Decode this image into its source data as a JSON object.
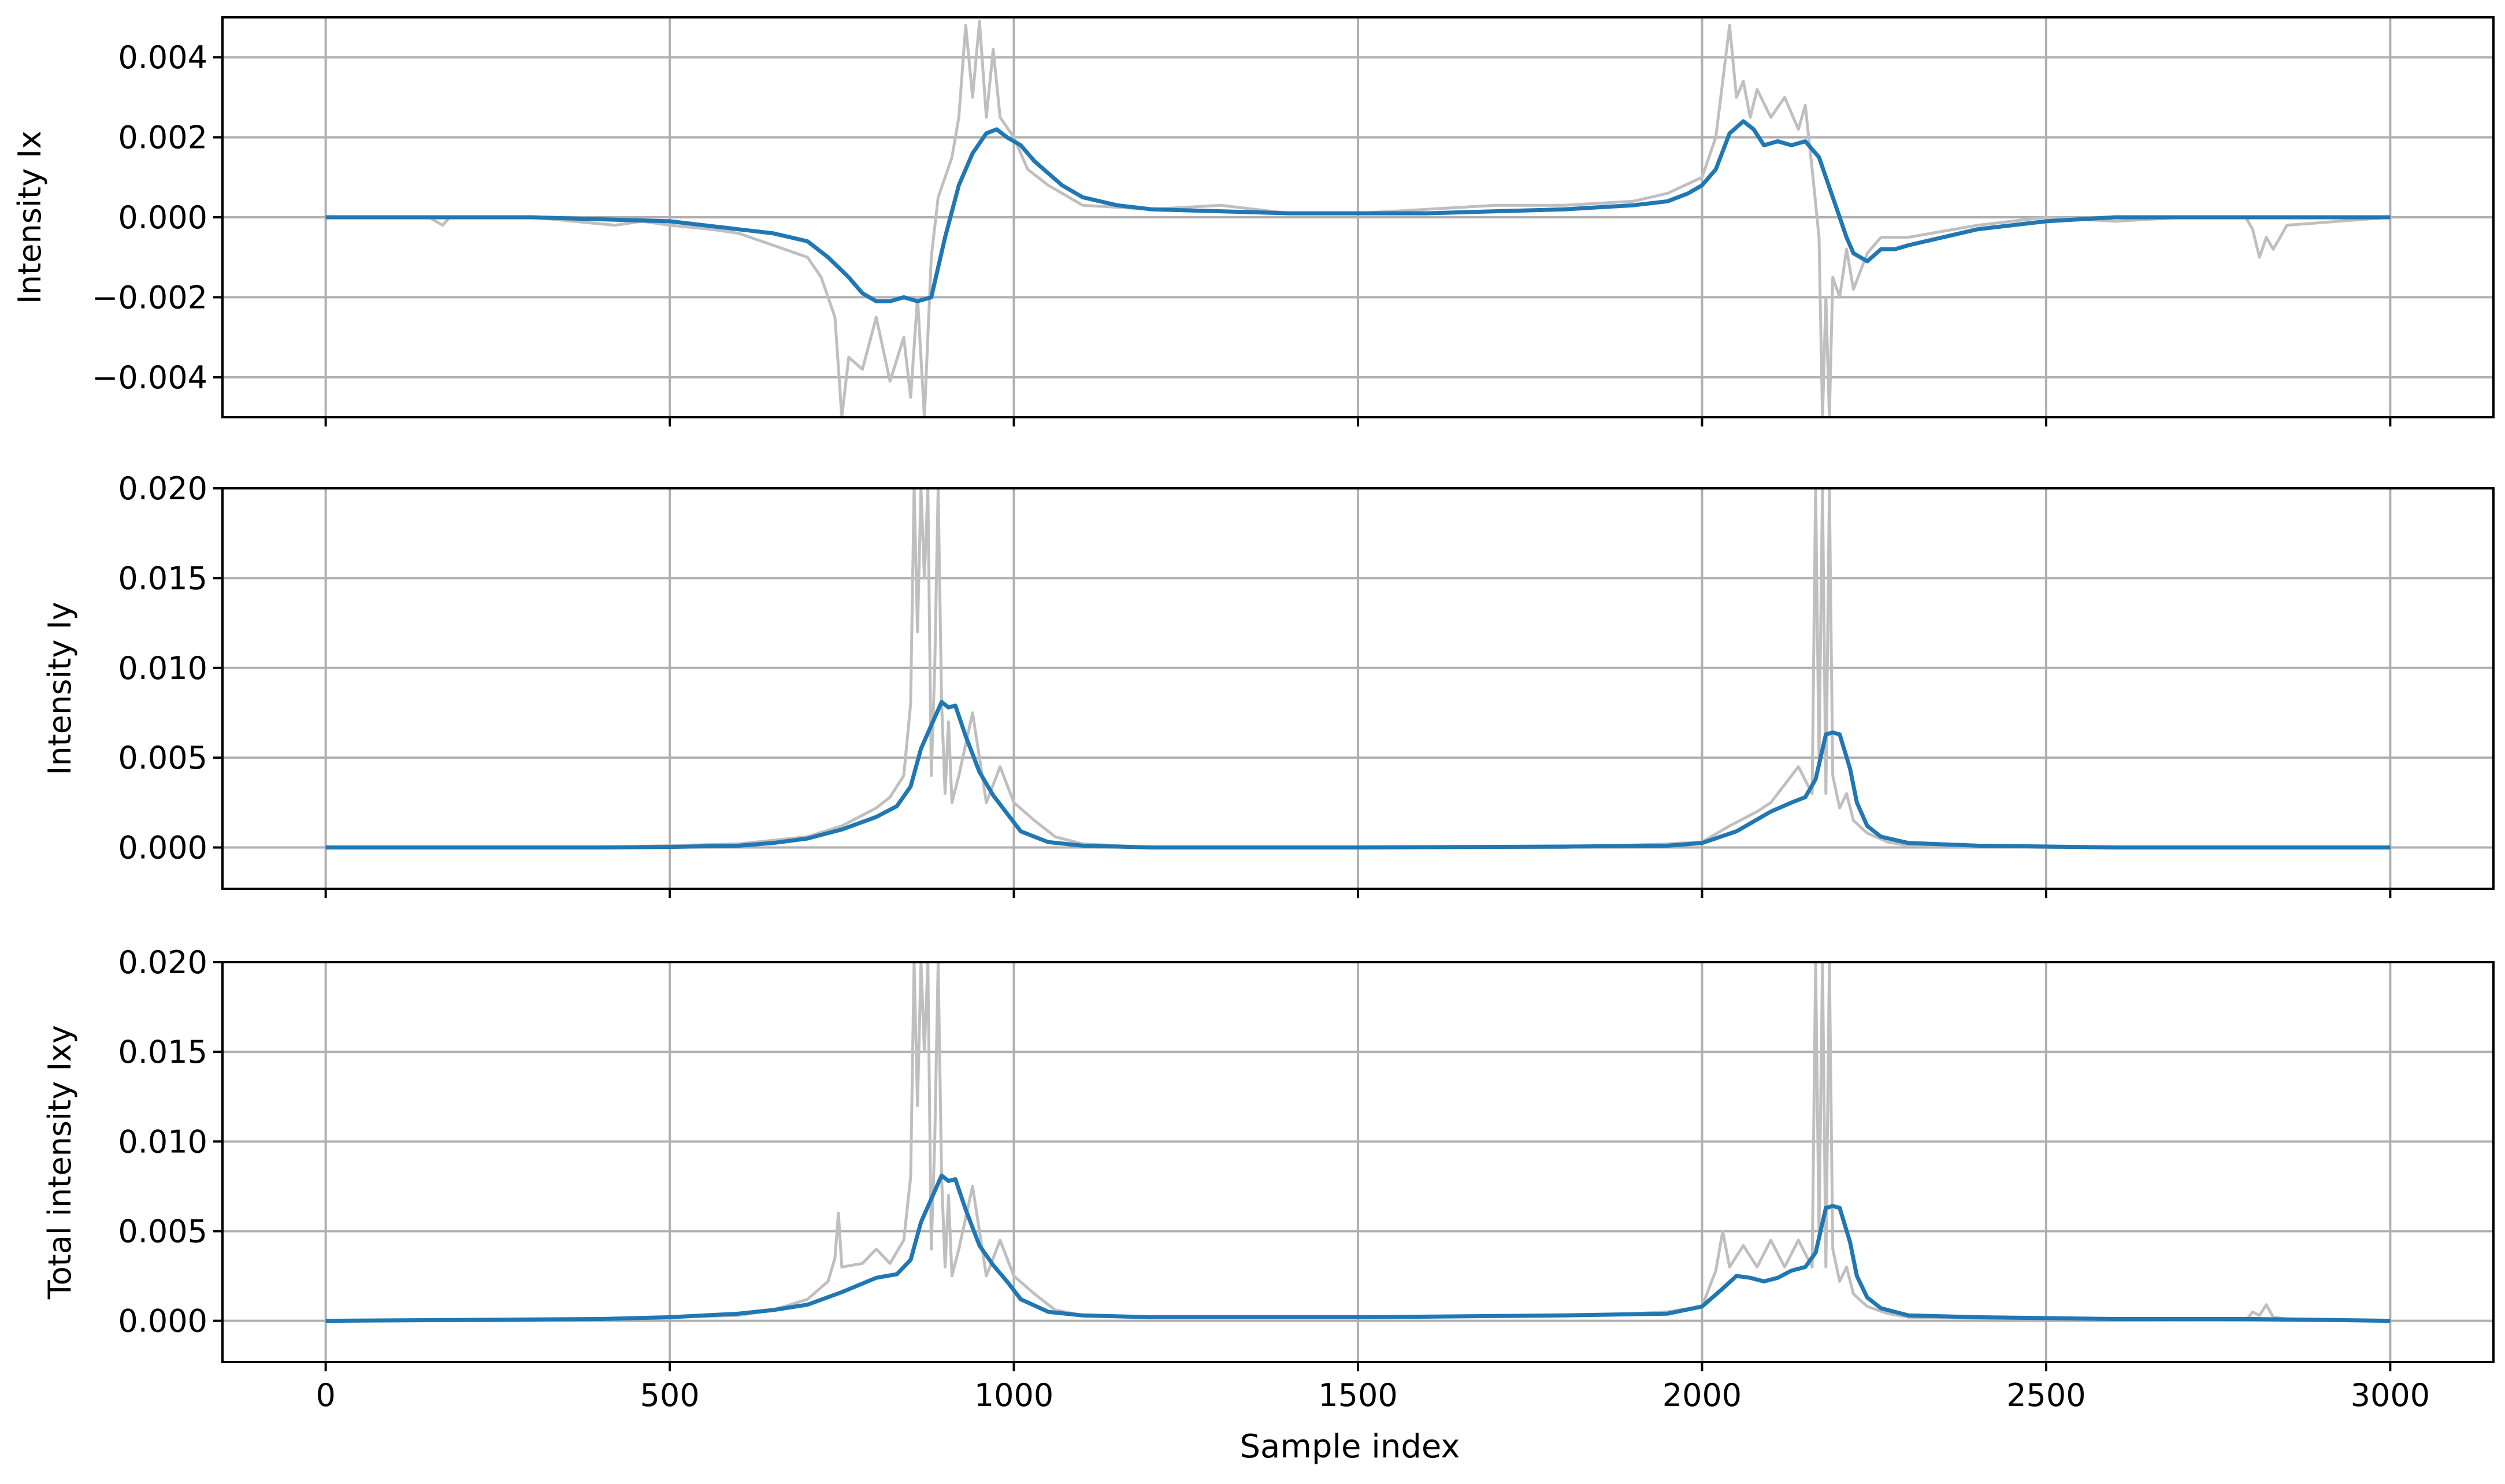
{
  "figure": {
    "xlabel": "Sample index"
  },
  "chart_data": [
    {
      "type": "line",
      "ylabel": "Intensity Ix",
      "xlim": [
        -150,
        3150
      ],
      "ylim": [
        -0.005,
        0.005
      ],
      "xticks": [
        0,
        500,
        1000,
        1500,
        2000,
        2500,
        3000
      ],
      "xtick_labels": [
        "0",
        "500",
        "1000",
        "1500",
        "2000",
        "2500",
        "3000"
      ],
      "yticks": [
        -0.004,
        -0.002,
        0.0,
        0.002,
        0.004
      ],
      "ytick_labels": [
        "−0.004",
        "−0.002",
        "0.000",
        "0.002",
        "0.004"
      ],
      "show_xtick_labels": false,
      "grid": true,
      "raw_color": "#bfbfbf",
      "smooth_color": "#1f77b4",
      "raw": {
        "x": [
          0,
          150,
          170,
          180,
          300,
          420,
          460,
          500,
          560,
          600,
          650,
          700,
          720,
          740,
          750,
          760,
          780,
          800,
          820,
          840,
          850,
          860,
          870,
          880,
          890,
          900,
          910,
          920,
          930,
          940,
          950,
          960,
          970,
          980,
          1000,
          1020,
          1050,
          1100,
          1200,
          1300,
          1400,
          1500,
          1600,
          1700,
          1800,
          1900,
          1950,
          2000,
          2020,
          2040,
          2050,
          2060,
          2070,
          2080,
          2100,
          2120,
          2140,
          2150,
          2160,
          2170,
          2175,
          2180,
          2185,
          2190,
          2200,
          2210,
          2220,
          2240,
          2260,
          2300,
          2400,
          2500,
          2600,
          2700,
          2790,
          2800,
          2810,
          2820,
          2830,
          2850,
          3000
        ],
        "y": [
          0.0,
          0.0,
          -0.0002,
          0.0,
          0.0,
          -0.0002,
          -0.0001,
          -0.0002,
          -0.0003,
          -0.0004,
          -0.0007,
          -0.001,
          -0.0015,
          -0.0025,
          -0.005,
          -0.0035,
          -0.0038,
          -0.0025,
          -0.0041,
          -0.003,
          -0.0045,
          -0.002,
          -0.005,
          -0.001,
          0.0005,
          0.001,
          0.0015,
          0.0025,
          0.0048,
          0.003,
          0.0049,
          0.0025,
          0.0042,
          0.0025,
          0.002,
          0.0012,
          0.0008,
          0.0003,
          0.0002,
          0.0003,
          0.0001,
          0.0001,
          0.0002,
          0.0003,
          0.0003,
          0.0004,
          0.0006,
          0.001,
          0.002,
          0.0048,
          0.003,
          0.0034,
          0.0025,
          0.0032,
          0.0025,
          0.003,
          0.0022,
          0.0028,
          0.0012,
          -0.0005,
          -0.005,
          -0.002,
          -0.005,
          -0.0015,
          -0.002,
          -0.0008,
          -0.0018,
          -0.0009,
          -0.0005,
          -0.0005,
          -0.0002,
          0.0,
          -0.0001,
          0.0,
          0.0,
          -0.0003,
          -0.001,
          -0.0005,
          -0.0008,
          -0.0002,
          0.0
        ]
      },
      "smooth": {
        "x": [
          0,
          100,
          200,
          300,
          400,
          500,
          550,
          600,
          650,
          700,
          730,
          760,
          780,
          800,
          820,
          840,
          860,
          880,
          900,
          920,
          940,
          960,
          975,
          990,
          1010,
          1030,
          1050,
          1070,
          1100,
          1150,
          1200,
          1300,
          1400,
          1500,
          1600,
          1700,
          1800,
          1900,
          1950,
          1980,
          2000,
          2020,
          2040,
          2060,
          2075,
          2090,
          2110,
          2130,
          2150,
          2170,
          2190,
          2210,
          2220,
          2240,
          2260,
          2280,
          2300,
          2400,
          2500,
          2600,
          2700,
          2800,
          2830,
          2900,
          3000
        ],
        "y": [
          0.0,
          0.0,
          0.0,
          0.0,
          -5e-05,
          -0.0001,
          -0.0002,
          -0.0003,
          -0.0004,
          -0.0006,
          -0.001,
          -0.0015,
          -0.0019,
          -0.0021,
          -0.0021,
          -0.002,
          -0.0021,
          -0.002,
          -0.0005,
          0.0008,
          0.0016,
          0.0021,
          0.0022,
          0.002,
          0.0018,
          0.0014,
          0.0011,
          0.0008,
          0.0005,
          0.0003,
          0.0002,
          0.00015,
          0.0001,
          0.0001,
          0.0001,
          0.00015,
          0.0002,
          0.0003,
          0.0004,
          0.0006,
          0.0008,
          0.0012,
          0.0021,
          0.0024,
          0.0022,
          0.0018,
          0.0019,
          0.0018,
          0.0019,
          0.0015,
          0.0005,
          -0.0005,
          -0.0009,
          -0.0011,
          -0.0008,
          -0.0008,
          -0.0007,
          -0.0003,
          -0.0001,
          0.0,
          0.0,
          0.0,
          0.0,
          0.0,
          0.0
        ]
      }
    },
    {
      "type": "line",
      "ylabel": "Intensity Iy",
      "xlim": [
        -150,
        3150
      ],
      "ylim": [
        -0.0023,
        0.02
      ],
      "xticks": [
        0,
        500,
        1000,
        1500,
        2000,
        2500,
        3000
      ],
      "xtick_labels": [
        "0",
        "500",
        "1000",
        "1500",
        "2000",
        "2500",
        "3000"
      ],
      "yticks": [
        0.0,
        0.005,
        0.01,
        0.015,
        0.02
      ],
      "ytick_labels": [
        "0.000",
        "0.005",
        "0.010",
        "0.015",
        "0.020"
      ],
      "show_xtick_labels": false,
      "grid": true,
      "raw_color": "#bfbfbf",
      "smooth_color": "#1f77b4",
      "raw": {
        "x": [
          0,
          400,
          500,
          600,
          650,
          700,
          750,
          780,
          800,
          820,
          840,
          850,
          855,
          860,
          865,
          870,
          875,
          880,
          885,
          890,
          895,
          900,
          905,
          910,
          920,
          940,
          960,
          980,
          1000,
          1030,
          1060,
          1100,
          1200,
          1500,
          1800,
          1950,
          2000,
          2040,
          2080,
          2100,
          2120,
          2140,
          2160,
          2165,
          2170,
          2175,
          2180,
          2185,
          2190,
          2200,
          2210,
          2220,
          2240,
          2270,
          2300,
          2500,
          3000
        ],
        "y": [
          0.0,
          0.0,
          0.0001,
          0.0002,
          0.0004,
          0.0006,
          0.0012,
          0.0018,
          0.0022,
          0.0028,
          0.004,
          0.008,
          0.02,
          0.012,
          0.02,
          0.015,
          0.02,
          0.004,
          0.01,
          0.02,
          0.008,
          0.003,
          0.007,
          0.0025,
          0.004,
          0.0075,
          0.0025,
          0.0045,
          0.0025,
          0.0015,
          0.0006,
          0.0002,
          0.0,
          0.0,
          0.0,
          0.0002,
          0.0003,
          0.0012,
          0.002,
          0.0025,
          0.0035,
          0.0045,
          0.003,
          0.02,
          0.005,
          0.02,
          0.003,
          0.02,
          0.004,
          0.0022,
          0.003,
          0.0015,
          0.0008,
          0.0003,
          0.0001,
          0.0,
          0.0
        ]
      },
      "smooth": {
        "x": [
          0,
          200,
          400,
          500,
          600,
          650,
          700,
          750,
          800,
          830,
          850,
          865,
          880,
          895,
          905,
          915,
          930,
          950,
          970,
          990,
          1010,
          1050,
          1100,
          1200,
          1500,
          1800,
          1950,
          2000,
          2050,
          2100,
          2130,
          2150,
          2165,
          2180,
          2190,
          2200,
          2215,
          2225,
          2240,
          2260,
          2300,
          2400,
          2600,
          3000
        ],
        "y": [
          0.0,
          0.0,
          0.0,
          3e-05,
          0.0001,
          0.00025,
          0.0005,
          0.001,
          0.0017,
          0.0023,
          0.0034,
          0.0055,
          0.0068,
          0.0081,
          0.0078,
          0.0079,
          0.0062,
          0.0042,
          0.0029,
          0.0019,
          0.0009,
          0.0003,
          0.0001,
          0.0,
          0.0,
          5e-05,
          0.0001,
          0.00025,
          0.0009,
          0.002,
          0.0025,
          0.0028,
          0.0038,
          0.0063,
          0.0064,
          0.0063,
          0.0044,
          0.0025,
          0.0012,
          0.0006,
          0.00025,
          0.0001,
          0.0,
          0.0
        ]
      }
    },
    {
      "type": "line",
      "ylabel": "Total intensity Ixy",
      "xlim": [
        -150,
        3150
      ],
      "ylim": [
        -0.0023,
        0.02
      ],
      "xticks": [
        0,
        500,
        1000,
        1500,
        2000,
        2500,
        3000
      ],
      "xtick_labels": [
        "0",
        "500",
        "1000",
        "1500",
        "2000",
        "2500",
        "3000"
      ],
      "yticks": [
        0.0,
        0.005,
        0.01,
        0.015,
        0.02
      ],
      "ytick_labels": [
        "0.000",
        "0.005",
        "0.010",
        "0.015",
        "0.020"
      ],
      "show_xtick_labels": true,
      "grid": true,
      "raw_color": "#bfbfbf",
      "smooth_color": "#1f77b4",
      "raw": {
        "x": [
          0,
          300,
          500,
          600,
          650,
          700,
          730,
          740,
          745,
          750,
          780,
          800,
          820,
          840,
          850,
          855,
          860,
          865,
          870,
          875,
          880,
          885,
          890,
          895,
          900,
          905,
          910,
          920,
          940,
          960,
          980,
          1000,
          1030,
          1060,
          1100,
          1200,
          1400,
          1600,
          1700,
          1800,
          1900,
          1950,
          2000,
          2020,
          2030,
          2040,
          2060,
          2080,
          2100,
          2120,
          2140,
          2160,
          2165,
          2170,
          2175,
          2180,
          2185,
          2190,
          2200,
          2210,
          2220,
          2240,
          2270,
          2300,
          2500,
          2790,
          2800,
          2810,
          2820,
          2830,
          2850,
          3000
        ],
        "y": [
          0.0,
          0.0,
          0.0002,
          0.0003,
          0.0006,
          0.0012,
          0.0022,
          0.0035,
          0.006,
          0.003,
          0.0032,
          0.004,
          0.0032,
          0.0045,
          0.008,
          0.02,
          0.012,
          0.02,
          0.015,
          0.02,
          0.004,
          0.01,
          0.02,
          0.008,
          0.003,
          0.007,
          0.0025,
          0.004,
          0.0075,
          0.0025,
          0.0045,
          0.0025,
          0.0015,
          0.0006,
          0.0003,
          0.0002,
          0.0002,
          0.0002,
          0.0003,
          0.0003,
          0.0004,
          0.0005,
          0.0008,
          0.0028,
          0.005,
          0.003,
          0.0042,
          0.003,
          0.0045,
          0.003,
          0.0045,
          0.003,
          0.02,
          0.005,
          0.02,
          0.003,
          0.02,
          0.004,
          0.0022,
          0.003,
          0.0015,
          0.0008,
          0.0004,
          0.0002,
          0.0001,
          0.0,
          0.0005,
          0.0003,
          0.0009,
          0.0002,
          0.0001,
          0.0
        ]
      },
      "smooth": {
        "x": [
          0,
          200,
          400,
          500,
          600,
          650,
          700,
          750,
          800,
          830,
          850,
          865,
          880,
          895,
          905,
          915,
          930,
          950,
          970,
          990,
          1010,
          1050,
          1100,
          1200,
          1500,
          1800,
          1950,
          2000,
          2030,
          2050,
          2070,
          2090,
          2110,
          2130,
          2150,
          2165,
          2180,
          2190,
          2200,
          2215,
          2225,
          2240,
          2260,
          2300,
          2400,
          2600,
          2800,
          3000
        ],
        "y": [
          0.0,
          5e-05,
          0.0001,
          0.0002,
          0.0004,
          0.0006,
          0.0009,
          0.0016,
          0.0024,
          0.0026,
          0.0034,
          0.0055,
          0.0068,
          0.0081,
          0.0078,
          0.0079,
          0.0062,
          0.0042,
          0.0031,
          0.0022,
          0.0012,
          0.0005,
          0.0003,
          0.0002,
          0.0002,
          0.0003,
          0.0004,
          0.0008,
          0.0018,
          0.0025,
          0.0024,
          0.0022,
          0.0024,
          0.0028,
          0.003,
          0.0038,
          0.0063,
          0.0064,
          0.0063,
          0.0044,
          0.0025,
          0.0013,
          0.0007,
          0.0003,
          0.0002,
          0.0001,
          0.0001,
          0.0
        ]
      }
    }
  ]
}
